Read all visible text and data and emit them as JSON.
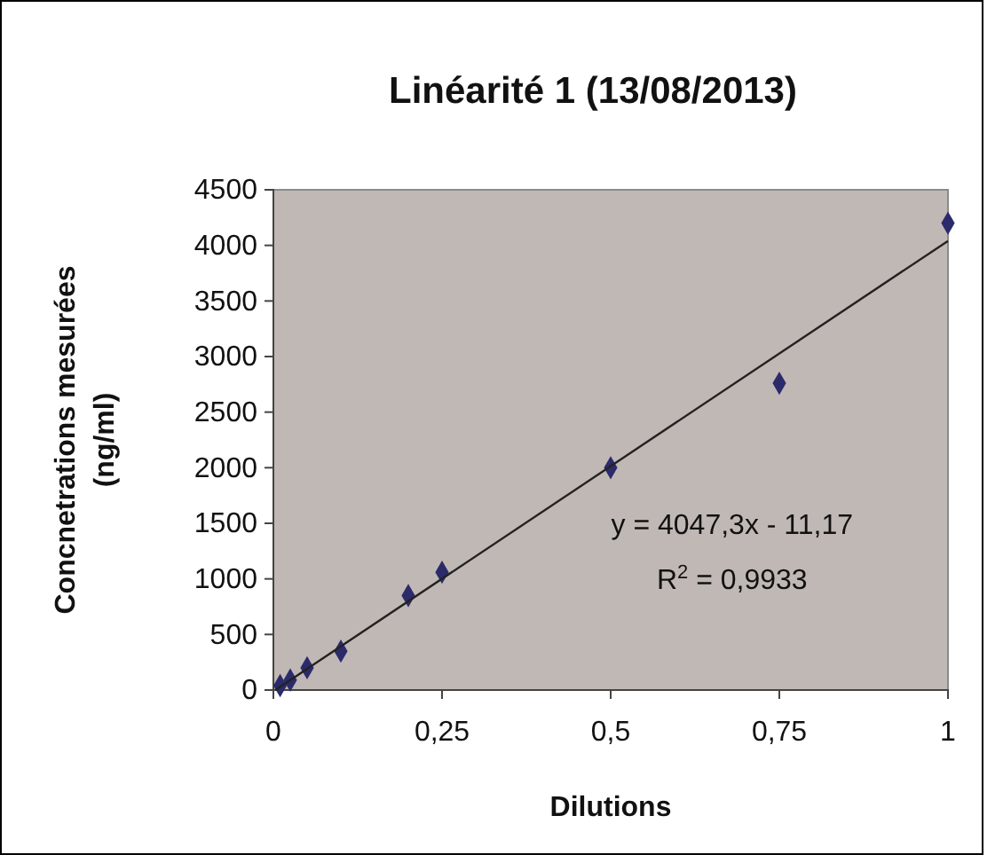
{
  "chart_data": {
    "type": "scatter",
    "title": "Linéarité 1 (13/08/2013)",
    "xlabel": "Dilutions",
    "ylabel": "Concnetrations mesurées (ng/ml)",
    "series": [
      {
        "color": "#2b2b6b",
        "x": [
          0.01,
          0.025,
          0.05,
          0.1,
          0.2,
          0.25,
          0.5,
          0.75,
          1
        ],
        "values": [
          40,
          90,
          200,
          350,
          850,
          1060,
          2000,
          2760,
          4200
        ],
        "marker": "diamond"
      },
      {
        "type": "line",
        "color": "#222222",
        "x": [
          0.003,
          1
        ],
        "values": [
          0,
          4040
        ],
        "marker": "none",
        "line_style": "solid"
      }
    ],
    "annotations": [
      "y = 4047,3x - 11,17",
      "R$^{2}$ = 0,9933"
    ],
    "xlim": [
      0,
      1
    ],
    "xticks": [
      0,
      {
        "value": 0.25,
        "label": "0,25"
      },
      {
        "value": 0.5,
        "label": "0,5"
      },
      {
        "value": 0.75,
        "label": "0,75"
      },
      1
    ],
    "ylim": [
      0,
      4500
    ],
    "yticks": [
      0,
      500,
      1000,
      1500,
      2000,
      2500,
      3000,
      3500,
      4000,
      4500
    ],
    "grid": false
  }
}
